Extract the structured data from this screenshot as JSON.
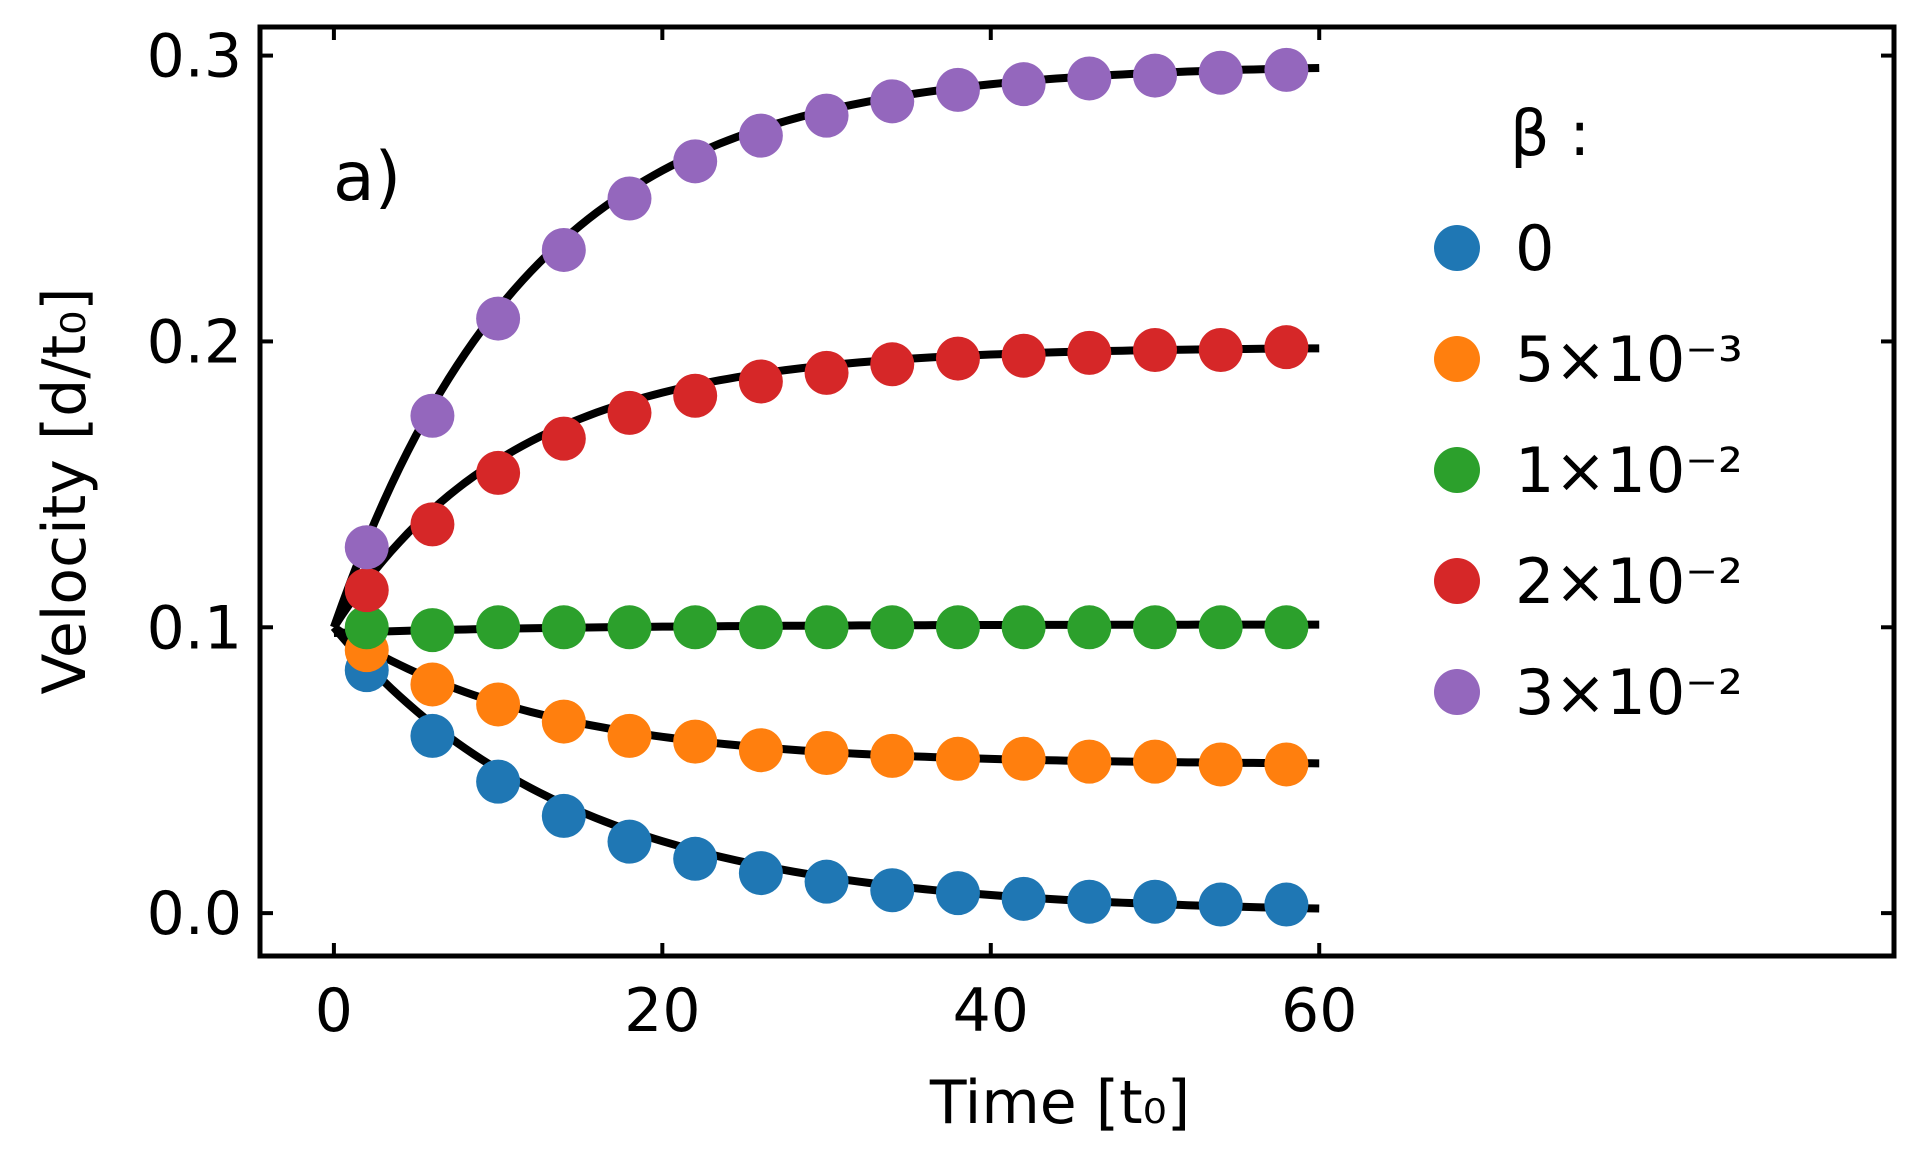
{
  "chart_data": {
    "type": "scatter",
    "panel_label": "a)",
    "xlabel": "Time [t₀]",
    "ylabel": "Velocity [d/t₀]",
    "xlim": [
      -4.5,
      95
    ],
    "ylim": [
      -0.015,
      0.31
    ],
    "xticks": [
      0,
      20,
      40,
      60
    ],
    "xtick_labels": [
      "0",
      "20",
      "40",
      "60"
    ],
    "yticks": [
      0.0,
      0.1,
      0.2,
      0.3
    ],
    "ytick_labels": [
      "0.0",
      "0.1",
      "0.2",
      "0.3"
    ],
    "legend_title": "β :",
    "legend_position": "right",
    "x": [
      2,
      6,
      10,
      14,
      18,
      22,
      26,
      30,
      34,
      38,
      42,
      46,
      50,
      54,
      58
    ],
    "series": [
      {
        "name": "0",
        "color": "#1f77b4",
        "values": [
          0.085,
          0.062,
          0.046,
          0.034,
          0.025,
          0.019,
          0.014,
          0.011,
          0.008,
          0.007,
          0.005,
          0.004,
          0.004,
          0.003,
          0.003
        ],
        "fit": {
          "v0": 0.1,
          "vinf": 0.0,
          "tau": 14.5
        }
      },
      {
        "name": "5×10⁻³",
        "color": "#ff7f0e",
        "values": [
          0.092,
          0.08,
          0.073,
          0.067,
          0.062,
          0.06,
          0.057,
          0.056,
          0.055,
          0.054,
          0.054,
          0.053,
          0.053,
          0.052,
          0.052
        ],
        "fit": {
          "v0": 0.1,
          "vinf": 0.052,
          "tau": 12.5
        }
      },
      {
        "name": "1×10⁻²",
        "color": "#2ca02c",
        "values": [
          0.1,
          0.099,
          0.1,
          0.1,
          0.1,
          0.1,
          0.1,
          0.1,
          0.1,
          0.1,
          0.1,
          0.1,
          0.1,
          0.1,
          0.1
        ],
        "fit": {
          "v0": 0.098,
          "vinf": 0.101,
          "tau": 15
        }
      },
      {
        "name": "2×10⁻²",
        "color": "#d62728",
        "values": [
          0.113,
          0.136,
          0.154,
          0.166,
          0.175,
          0.181,
          0.186,
          0.189,
          0.192,
          0.194,
          0.195,
          0.196,
          0.197,
          0.197,
          0.198
        ],
        "fit": {
          "v0": 0.1,
          "vinf": 0.198,
          "tau": 11
        }
      },
      {
        "name": "3×10⁻²",
        "color": "#9467bd",
        "values": [
          0.128,
          0.174,
          0.208,
          0.232,
          0.25,
          0.263,
          0.272,
          0.279,
          0.284,
          0.288,
          0.29,
          0.292,
          0.293,
          0.294,
          0.295
        ],
        "fit": {
          "v0": 0.1,
          "vinf": 0.297,
          "tau": 12
        }
      }
    ]
  }
}
